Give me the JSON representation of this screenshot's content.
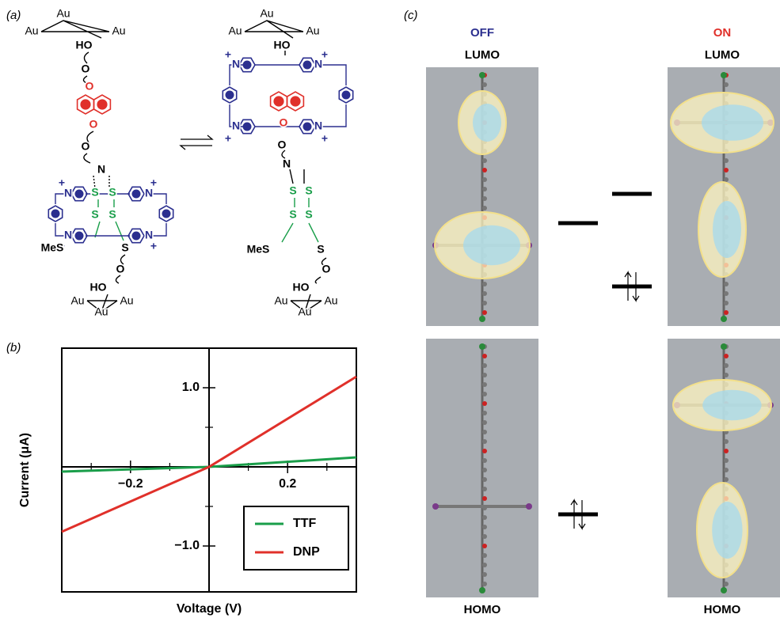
{
  "panels": {
    "a": "(a)",
    "b": "(b)",
    "c": "(c)"
  },
  "panel_a": {
    "left": [
      "Au",
      "Au",
      "Au",
      "HO",
      "O",
      "O",
      "O",
      "O",
      "N",
      "+",
      "N",
      "N",
      "+",
      "S",
      "S",
      "S",
      "S",
      "N",
      "N",
      "+",
      "+",
      "MeS",
      "S",
      "O",
      "HO",
      "Au",
      "Au",
      "Au"
    ],
    "right": [
      "Au",
      "Au",
      "Au",
      "HO",
      "+",
      "N",
      "N",
      "+",
      "O",
      "N",
      "N",
      "+",
      "+",
      "O",
      "N",
      "S",
      "S",
      "S",
      "S",
      "MeS",
      "S",
      "O",
      "HO",
      "Au",
      "Au",
      "Au"
    ]
  },
  "chart_data": {
    "type": "line",
    "x_label": "Voltage (V)",
    "y_label": "Current (μA)",
    "x": [
      -0.375,
      0,
      0.375
    ],
    "series": [
      {
        "name": "TTF",
        "color": "#1a9e4a",
        "values": [
          -0.06,
          0,
          0.12
        ]
      },
      {
        "name": "DNP",
        "color": "#e0302a",
        "values": [
          -0.82,
          0,
          1.14
        ]
      }
    ],
    "xlim": [
      -0.375,
      0.375
    ],
    "ylim": [
      -1.58,
      1.5
    ],
    "xticks": [
      {
        "value": -0.2,
        "label": "−0.2"
      },
      0.2
    ],
    "yticks": [
      {
        "value": -1.0,
        "label": "−1.0"
      },
      {
        "value": 1.0,
        "label": "1.0"
      }
    ],
    "xminorticks": [
      -0.3,
      -0.1,
      0.1,
      0.3
    ],
    "yminorticks": [
      -0.5,
      0.5
    ],
    "legend": "lower right"
  },
  "panel_c": {
    "off": "OFF",
    "on": "ON",
    "top": [
      "LUMO",
      "LUMO"
    ],
    "bottom": [
      "HOMO",
      "HOMO"
    ]
  }
}
